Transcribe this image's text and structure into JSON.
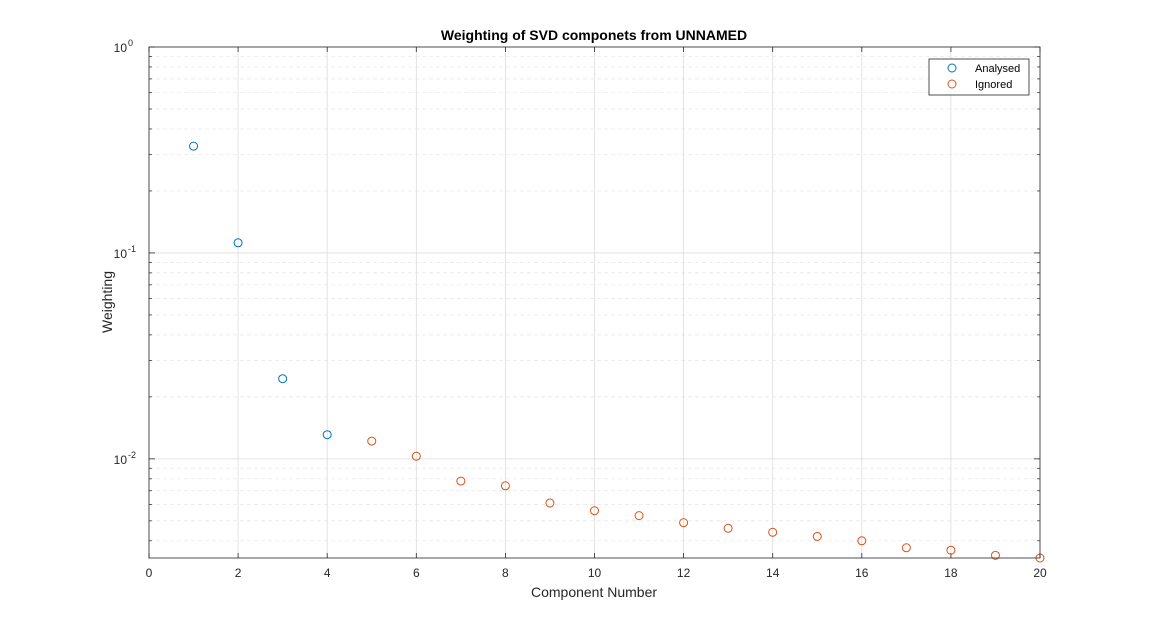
{
  "chart_data": {
    "type": "scatter",
    "title": "Weighting of SVD componets from UNNAMED",
    "xlabel": "Component Number",
    "ylabel": "Weighting",
    "xlim": [
      0,
      20
    ],
    "ylim": [
      0.0033,
      1
    ],
    "yscale": "log",
    "grid": true,
    "minor_grid": true,
    "legend_position": "top-right",
    "x_ticks": [
      "0",
      "2",
      "4",
      "6",
      "8",
      "10",
      "12",
      "14",
      "16",
      "18",
      "20"
    ],
    "y_ticks": [
      {
        "base": "10",
        "exp": "0"
      },
      {
        "base": "10",
        "exp": "-1"
      },
      {
        "base": "10",
        "exp": "-2"
      }
    ],
    "series": [
      {
        "name": "Analysed",
        "color": "#0072BD",
        "marker": "circle-open",
        "x": [
          1,
          2,
          3,
          4
        ],
        "y": [
          0.33,
          0.112,
          0.0245,
          0.0131
        ]
      },
      {
        "name": "Ignored",
        "color": "#D95319",
        "marker": "circle-open",
        "x": [
          5,
          6,
          7,
          8,
          9,
          10,
          11,
          12,
          13,
          14,
          15,
          16,
          17,
          18,
          19,
          20
        ],
        "y": [
          0.0122,
          0.0103,
          0.0078,
          0.0074,
          0.0061,
          0.0056,
          0.0053,
          0.0049,
          0.0046,
          0.0044,
          0.0042,
          0.004,
          0.0037,
          0.0036,
          0.0034,
          0.0033
        ]
      }
    ]
  }
}
